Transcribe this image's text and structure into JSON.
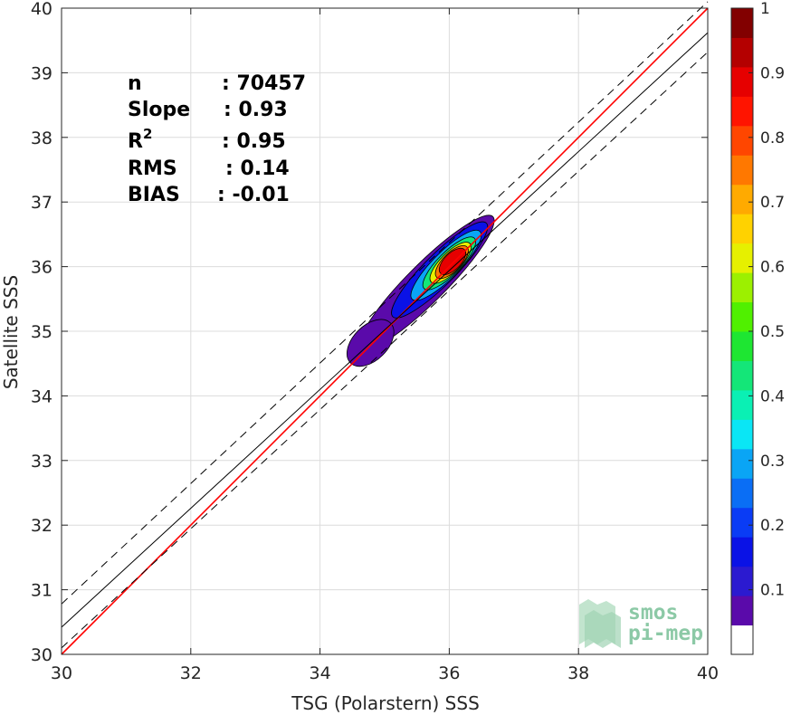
{
  "chart_data": {
    "type": "heatmap",
    "subtype": "density-contour scatter comparison",
    "xlabel": "TSG (Polarstern) SSS",
    "ylabel": "Satellite SSS",
    "xlim": [
      30,
      40
    ],
    "ylim": [
      30,
      40
    ],
    "xticks": [
      "30",
      "32",
      "34",
      "36",
      "38",
      "40"
    ],
    "yticks": [
      "30",
      "31",
      "32",
      "33",
      "34",
      "35",
      "36",
      "37",
      "38",
      "39",
      "40"
    ],
    "grid": true,
    "stats": [
      {
        "key": "n",
        "sep": ": ",
        "value": "70457"
      },
      {
        "key": "Slope",
        "sep": ": ",
        "value": "0.93"
      },
      {
        "key": "R",
        "sup": "2",
        "sep": ": ",
        "value": "0.95"
      },
      {
        "key": "RMS",
        "sep": ": ",
        "value": "0.14"
      },
      {
        "key": "BIAS",
        "sep": ": ",
        "value": "-0.01"
      }
    ],
    "reference_lines": [
      {
        "name": "1:1",
        "color": "#ff0000",
        "x": [
          30,
          40
        ],
        "y": [
          30,
          40
        ]
      },
      {
        "name": "fit",
        "color": "#000000",
        "style": "solid",
        "x": [
          30,
          40
        ],
        "y": [
          30.42,
          39.62
        ]
      },
      {
        "name": "fit+",
        "color": "#000000",
        "style": "dashed",
        "x": [
          30,
          40
        ],
        "y": [
          30.78,
          40.1
        ]
      },
      {
        "name": "fit-",
        "color": "#000000",
        "style": "dashed",
        "x": [
          30,
          40
        ],
        "y": [
          30.1,
          39.32
        ]
      }
    ],
    "density_peak": {
      "x": 36.05,
      "y": 36.08,
      "value": 1.0
    },
    "density_levels": [
      0.05,
      0.15,
      0.3,
      0.45,
      0.6,
      0.75,
      0.9
    ],
    "colorbar": {
      "range": [
        0,
        1
      ],
      "ticks": [
        "0.1",
        "0.2",
        "0.3",
        "0.4",
        "0.5",
        "0.6",
        "0.7",
        "0.8",
        "0.9",
        "1"
      ],
      "colors": [
        "#ffffff",
        "#5a0aaa",
        "#2b1ad0",
        "#0a12e6",
        "#0a3cf5",
        "#0a6ef5",
        "#0aa5f5",
        "#0ae6f5",
        "#0af0b4",
        "#14e678",
        "#1ee632",
        "#50f000",
        "#9cf000",
        "#e6f000",
        "#ffd200",
        "#ffaa00",
        "#ff7800",
        "#ff4600",
        "#ff1400",
        "#e60000",
        "#b40000",
        "#820000"
      ]
    }
  },
  "logo": {
    "line1": "smos",
    "line2": "pi-mep"
  }
}
